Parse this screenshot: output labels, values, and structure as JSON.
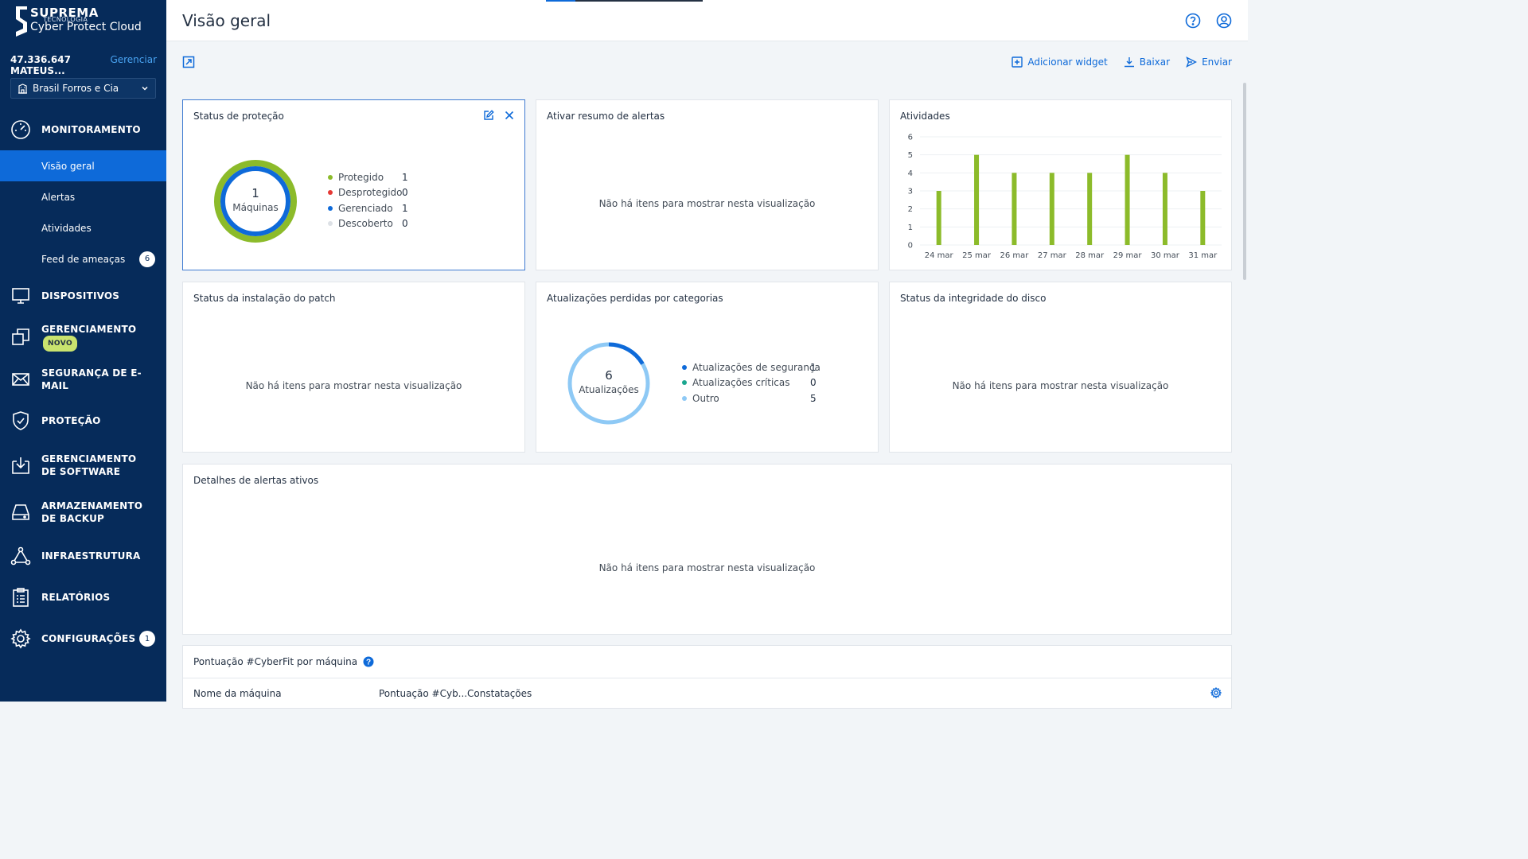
{
  "sidebar": {
    "brand": "SUPREMA",
    "brand_sub": "TECNOLOGIA",
    "product": "Cyber Protect Cloud",
    "tenant_name": "47.336.647 MATEUS...",
    "tenant_manage": "Gerenciar",
    "customer": "Brasil Forros e Cia",
    "sections": {
      "monitoring": "MONITORAMENTO",
      "devices": "DISPOSITIVOS",
      "management": "GERENCIAMENTO",
      "management_badge": "NOVO",
      "email_security": "SEGURANÇA DE E-MAIL",
      "protection": "PROTEÇÃO",
      "software_mgmt": "GERENCIAMENTO DE SOFTWARE",
      "backup_storage": "ARMAZENAMENTO DE BACKUP",
      "infrastructure": "INFRAESTRUTURA",
      "reports": "RELATÓRIOS",
      "settings": "CONFIGURAÇÕES",
      "settings_badge": "1"
    },
    "monitoring_items": {
      "overview": "Visão geral",
      "alerts": "Alertas",
      "activities": "Atividades",
      "threat_feed": "Feed de ameaças",
      "threat_feed_badge": "6"
    }
  },
  "header": {
    "title": "Visão geral",
    "loading_progress": 0.19
  },
  "toolbar": {
    "add_widget": "Adicionar widget",
    "download": "Baixar",
    "send": "Enviar"
  },
  "empty_text": "Não há itens para mostrar nesta visualização",
  "widgets": {
    "protection_status": {
      "title": "Status de proteção",
      "center_value": "1",
      "center_label": "Máquinas",
      "legend": [
        {
          "label": "Protegido",
          "value": "1",
          "color": "#8cbb2a"
        },
        {
          "label": "Desprotegido",
          "value": "0",
          "color": "#e53935"
        },
        {
          "label": "Gerenciado",
          "value": "1",
          "color": "#0e6ad9"
        },
        {
          "label": "Descoberto",
          "value": "0",
          "color": "#dde1e6"
        }
      ]
    },
    "alert_summary": {
      "title": "Ativar resumo de alertas"
    },
    "activities": {
      "title": "Atividades"
    },
    "patch_status": {
      "title": "Status da instalação do patch"
    },
    "missing_updates": {
      "title": "Atualizações perdidas por categorias",
      "center_value": "6",
      "center_label": "Atualizações",
      "legend": [
        {
          "label": "Atualizações de segurança",
          "value": "1",
          "color": "#0e6ad9"
        },
        {
          "label": "Atualizações críticas",
          "value": "0",
          "color": "#1aa68f"
        },
        {
          "label": "Outro",
          "value": "5",
          "color": "#8ec9f5"
        }
      ]
    },
    "disk_health": {
      "title": "Status da integridade do disco"
    },
    "active_alerts": {
      "title": "Detalhes de alertas ativos"
    },
    "cyberfit": {
      "title": "Pontuação #CyberFit por máquina",
      "columns": [
        "Nome da máquina",
        "Pontuação #Cyb...",
        "Constatações"
      ]
    }
  },
  "chart_data": {
    "type": "bar",
    "categories": [
      "24 mar",
      "25 mar",
      "26 mar",
      "27 mar",
      "28 mar",
      "29 mar",
      "30 mar",
      "31 mar"
    ],
    "values": [
      3,
      5,
      4,
      4,
      4,
      5,
      4,
      3
    ],
    "ylim": [
      0,
      6
    ],
    "yticks": [
      "0",
      "1",
      "2",
      "3",
      "4",
      "5",
      "6"
    ],
    "color": "#8cbb2a",
    "grid": true
  }
}
